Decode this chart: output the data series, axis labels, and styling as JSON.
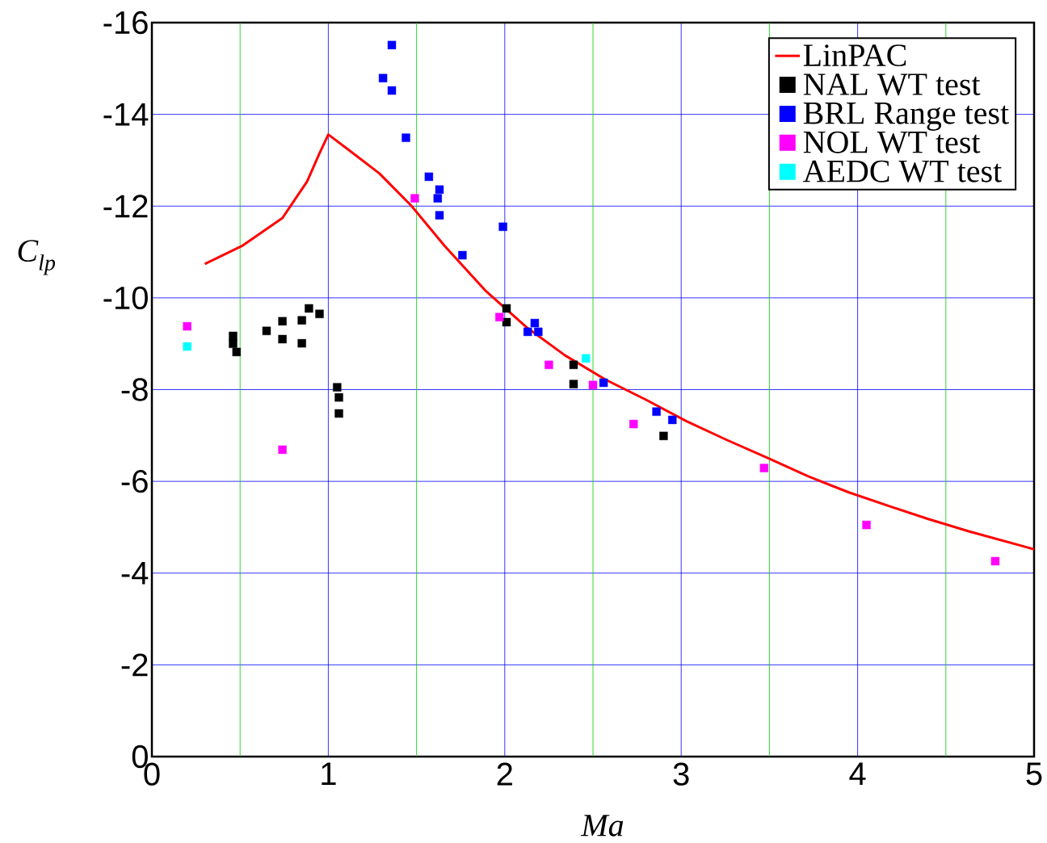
{
  "chart_data": {
    "type": "scatter",
    "xlabel": "Ma",
    "ylabel": "C$_{lp}$",
    "xlim": [
      0,
      5
    ],
    "ylim": [
      0,
      -16
    ],
    "xticks": [
      0,
      {
        "value": 0.5,
        "label": null
      },
      1,
      {
        "value": 1.5,
        "label": null
      },
      2,
      {
        "value": 2.5,
        "label": null
      },
      3,
      {
        "value": 3.5,
        "label": null
      },
      4,
      {
        "value": 4.5,
        "label": null
      },
      5
    ],
    "yticks": [
      -16,
      -14,
      -12,
      -10,
      -8,
      -6,
      -4,
      -2,
      0
    ],
    "grid": true,
    "legend": "top right",
    "marker": "square",
    "series": [
      {
        "name": "LinPAC",
        "type": "line",
        "marker": "none",
        "color": "#ff0000",
        "x": [
          0.3,
          0.51,
          0.74,
          0.88,
          0.95,
          1.0,
          1.11,
          1.29,
          1.47,
          1.66,
          1.89,
          2.12,
          2.34,
          2.57,
          2.8,
          3.03,
          3.26,
          3.49,
          3.72,
          3.95,
          4.18,
          4.4,
          4.63,
          5.0
        ],
        "values": [
          -10.74,
          -11.13,
          -11.74,
          -12.54,
          -13.15,
          -13.56,
          -13.24,
          -12.71,
          -12.01,
          -11.13,
          -10.16,
          -9.37,
          -8.75,
          -8.22,
          -7.78,
          -7.31,
          -6.9,
          -6.51,
          -6.11,
          -5.76,
          -5.46,
          -5.18,
          -4.91,
          -4.52
        ]
      },
      {
        "name": "NAL WT test",
        "color": "#000000",
        "x": [
          0.46,
          0.46,
          0.48,
          0.65,
          0.74,
          0.74,
          0.85,
          0.85,
          0.89,
          0.95,
          1.05,
          1.06,
          1.06,
          2.01,
          2.01,
          2.39,
          2.39,
          2.9
        ],
        "values": [
          -9.17,
          -9.0,
          -8.82,
          -9.28,
          -9.49,
          -9.1,
          -9.51,
          -9.01,
          -9.77,
          -9.65,
          -8.05,
          -7.83,
          -7.48,
          -9.77,
          -9.47,
          -8.54,
          -8.12,
          -6.99
        ]
      },
      {
        "name": "BRL Range test",
        "color": "#0000ff",
        "x": [
          1.36,
          1.31,
          1.36,
          1.44,
          1.57,
          1.63,
          1.62,
          1.63,
          1.76,
          1.99,
          2.13,
          2.17,
          2.19,
          2.56,
          2.86,
          2.95
        ],
        "values": [
          -15.51,
          -14.79,
          -14.52,
          -13.49,
          -12.64,
          -12.36,
          -12.17,
          -11.8,
          -10.93,
          -11.55,
          -9.26,
          -9.45,
          -9.26,
          -8.15,
          -7.52,
          -7.34
        ]
      },
      {
        "name": "NOL WT test",
        "color": "#ff00ff",
        "x": [
          0.2,
          0.74,
          1.49,
          1.97,
          2.25,
          2.5,
          2.73,
          3.47,
          4.05,
          4.78
        ],
        "values": [
          -9.38,
          -6.69,
          -12.17,
          -9.58,
          -8.54,
          -8.1,
          -7.25,
          -6.29,
          -5.05,
          -4.26
        ]
      },
      {
        "name": "AEDC WT test",
        "color": "#00ffff",
        "x": [
          0.2,
          2.46
        ],
        "values": [
          -8.94,
          -8.68
        ]
      }
    ]
  }
}
